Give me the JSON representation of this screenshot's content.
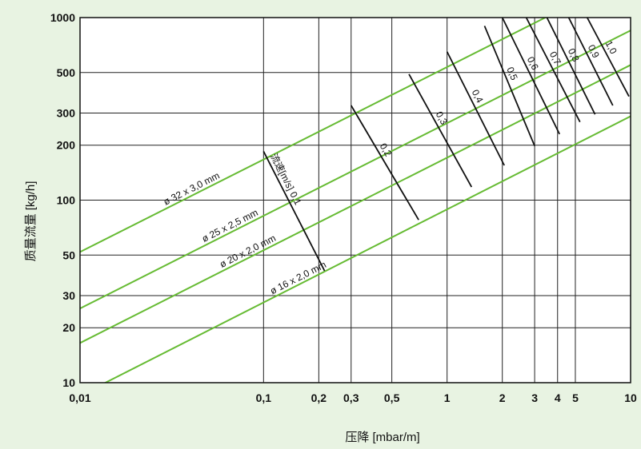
{
  "chart_data": {
    "type": "line",
    "title": "",
    "xlabel": "压降 [mbar/m]",
    "ylabel": "质量流量 [kg/h]",
    "x_scale": "log",
    "y_scale": "log",
    "xlim": [
      0.01,
      10
    ],
    "ylim": [
      10,
      1000
    ],
    "grid": true,
    "x_ticks": [
      {
        "value": 0.01,
        "label": "0,01"
      },
      {
        "value": 0.1,
        "label": "0,1"
      },
      {
        "value": 0.2,
        "label": "0,2"
      },
      {
        "value": 0.3,
        "label": "0,3"
      },
      {
        "value": 0.5,
        "label": "0,5"
      },
      {
        "value": 1,
        "label": "1"
      },
      {
        "value": 2,
        "label": "2"
      },
      {
        "value": 3,
        "label": "3"
      },
      {
        "value": 4,
        "label": "4"
      },
      {
        "value": 5,
        "label": "5"
      },
      {
        "value": 10,
        "label": "10"
      }
    ],
    "y_ticks": [
      {
        "value": 10,
        "label": "10"
      },
      {
        "value": 20,
        "label": "20"
      },
      {
        "value": 30,
        "label": "30"
      },
      {
        "value": 50,
        "label": "50"
      },
      {
        "value": 100,
        "label": "100"
      },
      {
        "value": 200,
        "label": "200"
      },
      {
        "value": 300,
        "label": "300"
      },
      {
        "value": 500,
        "label": "500"
      },
      {
        "value": 1000,
        "label": "1000"
      }
    ],
    "series": [
      {
        "name": "ø 32 x 3,0 mm",
        "color": "#66bb33",
        "label_at_x": 0.042,
        "x": [
          0.01,
          10
        ],
        "y": [
          52,
          1720
        ]
      },
      {
        "name": "ø 25 x 2,5 mm",
        "color": "#66bb33",
        "label_at_x": 0.068,
        "x": [
          0.01,
          10
        ],
        "y": [
          25.5,
          850
        ]
      },
      {
        "name": "ø 20 x 2,0 mm",
        "color": "#66bb33",
        "label_at_x": 0.085,
        "x": [
          0.01,
          10
        ],
        "y": [
          16.5,
          550
        ]
      },
      {
        "name": "ø 16 x 2,0 mm",
        "color": "#66bb33",
        "label_at_x": 0.16,
        "x": [
          0.01,
          10
        ],
        "y": [
          8.5,
          288
        ]
      }
    ],
    "velocity_title": "流速[m/s]",
    "velocity_lines": [
      {
        "label": "0,1",
        "x1": 0.1,
        "y1": 185,
        "x2": 0.215,
        "y2": 41
      },
      {
        "label": "0,2",
        "x1": 0.3,
        "y1": 330,
        "x2": 0.7,
        "y2": 78
      },
      {
        "label": "0,3",
        "x1": 0.62,
        "y1": 490,
        "x2": 1.36,
        "y2": 118
      },
      {
        "label": "0,4",
        "x1": 1.0,
        "y1": 650,
        "x2": 2.05,
        "y2": 155
      },
      {
        "label": "0,5",
        "x1": 1.6,
        "y1": 900,
        "x2": 3.0,
        "y2": 198
      },
      {
        "label": "0,6",
        "x1": 2.0,
        "y1": 1000,
        "x2": 4.1,
        "y2": 230
      },
      {
        "label": "0,7",
        "x1": 2.7,
        "y1": 1000,
        "x2": 5.3,
        "y2": 268
      },
      {
        "label": "0,8",
        "x1": 3.5,
        "y1": 1000,
        "x2": 6.4,
        "y2": 295
      },
      {
        "label": "0,9",
        "x1": 4.6,
        "y1": 1000,
        "x2": 8.0,
        "y2": 330
      },
      {
        "label": "1,0",
        "x1": 5.8,
        "y1": 1000,
        "x2": 9.8,
        "y2": 370
      }
    ],
    "colors": {
      "background": "#e8f3e2",
      "plot": "#ffffff",
      "pipe": "#66bb33",
      "velocity": "#111111"
    }
  }
}
